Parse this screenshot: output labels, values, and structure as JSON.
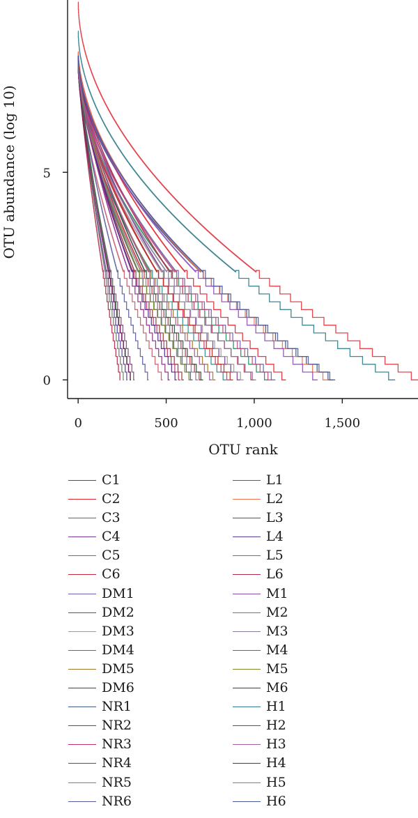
{
  "chart_data": {
    "type": "line",
    "title": "",
    "xlabel": "OTU rank",
    "ylabel": "OTU abundance (log 10)",
    "xlim": [
      -60,
      1930
    ],
    "ylim": [
      -0.45,
      9.15
    ],
    "xticks": [
      0,
      500,
      1000,
      1500
    ],
    "xtick_labels": [
      "0",
      "500",
      "1,000",
      "1,500"
    ],
    "yticks": [
      0,
      5
    ],
    "ytick_labels": [
      "0",
      "5"
    ],
    "grid": false,
    "legend_position": "bottom",
    "series": [
      {
        "name": "C1",
        "color": "#3a4f8f",
        "otu_count": 1450,
        "max_abundance": 7.7,
        "curvature": 0.56
      },
      {
        "name": "C2",
        "color": "#e0252c",
        "otu_count": 1180,
        "max_abundance": 7.9,
        "curvature": 0.6
      },
      {
        "name": "C3",
        "color": "#1f8a5a",
        "otu_count": 1080,
        "max_abundance": 7.6,
        "curvature": 0.58
      },
      {
        "name": "C4",
        "color": "#7a3595",
        "otu_count": 920,
        "max_abundance": 7.8,
        "curvature": 0.62
      },
      {
        "name": "C5",
        "color": "#2a8c8c",
        "otu_count": 840,
        "max_abundance": 7.5,
        "curvature": 0.6
      },
      {
        "name": "C6",
        "color": "#c8283a",
        "otu_count": 700,
        "max_abundance": 7.7,
        "curvature": 0.64
      },
      {
        "name": "DM1",
        "color": "#6a5fb0",
        "otu_count": 1120,
        "max_abundance": 7.6,
        "curvature": 0.6
      },
      {
        "name": "DM2",
        "color": "#b02a4a",
        "otu_count": 1000,
        "max_abundance": 7.8,
        "curvature": 0.62
      },
      {
        "name": "DM3",
        "color": "#9a9a9a",
        "otu_count": 940,
        "max_abundance": 7.5,
        "curvature": 0.62
      },
      {
        "name": "DM4",
        "color": "#d8306a",
        "otu_count": 860,
        "max_abundance": 7.7,
        "curvature": 0.63
      },
      {
        "name": "DM5",
        "color": "#a0762a",
        "otu_count": 780,
        "max_abundance": 7.6,
        "curvature": 0.64
      },
      {
        "name": "DM6",
        "color": "#2f4f3a",
        "otu_count": 710,
        "max_abundance": 7.8,
        "curvature": 0.65
      },
      {
        "name": "NR1",
        "color": "#3d5a80",
        "otu_count": 650,
        "max_abundance": 7.5,
        "curvature": 0.66
      },
      {
        "name": "NR2",
        "color": "#8b3a3a",
        "otu_count": 600,
        "max_abundance": 7.7,
        "curvature": 0.66
      },
      {
        "name": "NR3",
        "color": "#c0306a",
        "otu_count": 580,
        "max_abundance": 7.6,
        "curvature": 0.67
      },
      {
        "name": "NR4",
        "color": "#8a2a8a",
        "otu_count": 520,
        "max_abundance": 7.8,
        "curvature": 0.68
      },
      {
        "name": "NR5",
        "color": "#c85a6a",
        "otu_count": 480,
        "max_abundance": 7.5,
        "curvature": 0.68
      },
      {
        "name": "NR6",
        "color": "#5a5aa0",
        "otu_count": 400,
        "max_abundance": 7.7,
        "curvature": 0.7
      },
      {
        "name": "L1",
        "color": "#7a4a7a",
        "otu_count": 320,
        "max_abundance": 7.6,
        "curvature": 0.75
      },
      {
        "name": "L2",
        "color": "#f0704a",
        "otu_count": 1420,
        "max_abundance": 7.9,
        "curvature": 0.56
      },
      {
        "name": "L3",
        "color": "#2f6a3a",
        "otu_count": 300,
        "max_abundance": 7.8,
        "curvature": 0.76
      },
      {
        "name": "L4",
        "color": "#5a3a9a",
        "otu_count": 280,
        "max_abundance": 7.5,
        "curvature": 0.76
      },
      {
        "name": "L5",
        "color": "#6a7a6a",
        "otu_count": 260,
        "max_abundance": 7.7,
        "curvature": 0.77
      },
      {
        "name": "L6",
        "color": "#b0284a",
        "otu_count": 240,
        "max_abundance": 7.6,
        "curvature": 0.78
      },
      {
        "name": "M1",
        "color": "#8a4ab0",
        "otu_count": 1360,
        "max_abundance": 7.8,
        "curvature": 0.57
      },
      {
        "name": "M2",
        "color": "#c04a7a",
        "otu_count": 1100,
        "max_abundance": 7.6,
        "curvature": 0.6
      },
      {
        "name": "M3",
        "color": "#8a7a9a",
        "otu_count": 1010,
        "max_abundance": 7.5,
        "curvature": 0.61
      },
      {
        "name": "M4",
        "color": "#e0303a",
        "otu_count": 1930,
        "max_abundance": 9.1,
        "curvature": 0.52
      },
      {
        "name": "M5",
        "color": "#7a8a2a",
        "otu_count": 640,
        "max_abundance": 7.7,
        "curvature": 0.66
      },
      {
        "name": "M6",
        "color": "#4a2a8a",
        "otu_count": 560,
        "max_abundance": 7.8,
        "curvature": 0.67
      },
      {
        "name": "H1",
        "color": "#2a7a8a",
        "otu_count": 1800,
        "max_abundance": 8.4,
        "curvature": 0.53
      },
      {
        "name": "H2",
        "color": "#b0301a",
        "otu_count": 880,
        "max_abundance": 7.6,
        "curvature": 0.62
      },
      {
        "name": "H3",
        "color": "#a05aa0",
        "otu_count": 760,
        "max_abundance": 7.7,
        "curvature": 0.64
      },
      {
        "name": "H4",
        "color": "#7a1a5a",
        "otu_count": 300,
        "max_abundance": 7.5,
        "curvature": 0.76
      },
      {
        "name": "H5",
        "color": "#8a7a8a",
        "otu_count": 680,
        "max_abundance": 7.6,
        "curvature": 0.65
      },
      {
        "name": "H6",
        "color": "#4a5a9a",
        "otu_count": 1460,
        "max_abundance": 7.8,
        "curvature": 0.56
      }
    ]
  }
}
